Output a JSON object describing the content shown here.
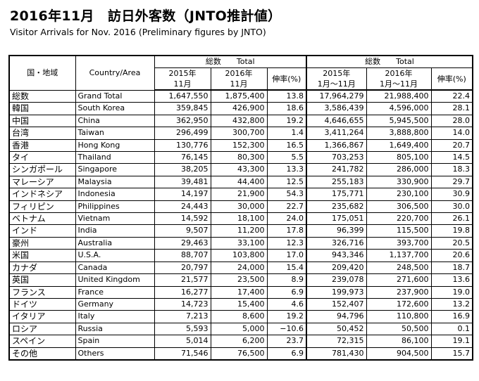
{
  "title": "2016年11月　訪日外客数（JNTO推計値）",
  "subtitle": "Visitor Arrivals for Nov. 2016 (Preliminary figures by JNTO)",
  "header": {
    "region_jp": "国・地域",
    "region_en": "Country/Area",
    "group1": "総数　　Total",
    "group2": "総数　　Total",
    "col_2015_nov": [
      "2015年",
      "11月"
    ],
    "col_2016_nov": [
      "2016年",
      "11月"
    ],
    "col_growth": "伸率(%)",
    "col_2015_ytd": [
      "2015年",
      "1月～11月"
    ],
    "col_2016_ytd": [
      "2016年",
      "1月～11月"
    ],
    "col_growth_ytd": "伸率(%)"
  },
  "rows": [
    {
      "jp": "総数",
      "en": "Grand Total",
      "v2015": "1,647,550",
      "v2016": "1,875,400",
      "g": "13.8",
      "y2015": "17,964,279",
      "y2016": "21,988,400",
      "yg": "22.4"
    },
    {
      "jp": "韓国",
      "en": "South Korea",
      "v2015": "359,845",
      "v2016": "426,900",
      "g": "18.6",
      "y2015": "3,586,439",
      "y2016": "4,596,000",
      "yg": "28.1"
    },
    {
      "jp": "中国",
      "en": "China",
      "v2015": "362,950",
      "v2016": "432,800",
      "g": "19.2",
      "y2015": "4,646,655",
      "y2016": "5,945,500",
      "yg": "28.0"
    },
    {
      "jp": "台湾",
      "en": "Taiwan",
      "v2015": "296,499",
      "v2016": "300,700",
      "g": "1.4",
      "y2015": "3,411,264",
      "y2016": "3,888,800",
      "yg": "14.0"
    },
    {
      "jp": "香港",
      "en": "Hong Kong",
      "v2015": "130,776",
      "v2016": "152,300",
      "g": "16.5",
      "y2015": "1,366,867",
      "y2016": "1,649,400",
      "yg": "20.7"
    },
    {
      "jp": "タイ",
      "en": "Thailand",
      "v2015": "76,145",
      "v2016": "80,300",
      "g": "5.5",
      "y2015": "703,253",
      "y2016": "805,100",
      "yg": "14.5"
    },
    {
      "jp": "シンガポール",
      "en": "Singapore",
      "v2015": "38,205",
      "v2016": "43,300",
      "g": "13.3",
      "y2015": "241,782",
      "y2016": "286,000",
      "yg": "18.3"
    },
    {
      "jp": "マレーシア",
      "en": "Malaysia",
      "v2015": "39,481",
      "v2016": "44,400",
      "g": "12.5",
      "y2015": "255,183",
      "y2016": "330,900",
      "yg": "29.7"
    },
    {
      "jp": "インドネシア",
      "en": "Indonesia",
      "v2015": "14,197",
      "v2016": "21,900",
      "g": "54.3",
      "y2015": "175,771",
      "y2016": "230,100",
      "yg": "30.9"
    },
    {
      "jp": "フィリピン",
      "en": "Philippines",
      "v2015": "24,443",
      "v2016": "30,000",
      "g": "22.7",
      "y2015": "235,682",
      "y2016": "306,500",
      "yg": "30.0"
    },
    {
      "jp": "ベトナム",
      "en": "Vietnam",
      "v2015": "14,592",
      "v2016": "18,100",
      "g": "24.0",
      "y2015": "175,051",
      "y2016": "220,700",
      "yg": "26.1"
    },
    {
      "jp": "インド",
      "en": "India",
      "v2015": "9,507",
      "v2016": "11,200",
      "g": "17.8",
      "y2015": "96,399",
      "y2016": "115,500",
      "yg": "19.8"
    },
    {
      "jp": "豪州",
      "en": "Australia",
      "v2015": "29,463",
      "v2016": "33,100",
      "g": "12.3",
      "y2015": "326,716",
      "y2016": "393,700",
      "yg": "20.5"
    },
    {
      "jp": "米国",
      "en": "U.S.A.",
      "v2015": "88,707",
      "v2016": "103,800",
      "g": "17.0",
      "y2015": "943,346",
      "y2016": "1,137,700",
      "yg": "20.6"
    },
    {
      "jp": "カナダ",
      "en": "Canada",
      "v2015": "20,797",
      "v2016": "24,000",
      "g": "15.4",
      "y2015": "209,420",
      "y2016": "248,500",
      "yg": "18.7"
    },
    {
      "jp": "英国",
      "en": "United Kingdom",
      "v2015": "21,577",
      "v2016": "23,500",
      "g": "8.9",
      "y2015": "239,078",
      "y2016": "271,600",
      "yg": "13.6"
    },
    {
      "jp": "フランス",
      "en": "France",
      "v2015": "16,277",
      "v2016": "17,400",
      "g": "6.9",
      "y2015": "199,973",
      "y2016": "237,900",
      "yg": "19.0"
    },
    {
      "jp": "ドイツ",
      "en": "Germany",
      "v2015": "14,723",
      "v2016": "15,400",
      "g": "4.6",
      "y2015": "152,407",
      "y2016": "172,600",
      "yg": "13.2"
    },
    {
      "jp": "イタリア",
      "en": "Italy",
      "v2015": "7,213",
      "v2016": "8,600",
      "g": "19.2",
      "y2015": "94,796",
      "y2016": "110,800",
      "yg": "16.9"
    },
    {
      "jp": "ロシア",
      "en": "Russia",
      "v2015": "5,593",
      "v2016": "5,000",
      "g": "−10.6",
      "y2015": "50,452",
      "y2016": "50,500",
      "yg": "0.1"
    },
    {
      "jp": "スペイン",
      "en": "Spain",
      "v2015": "5,014",
      "v2016": "6,200",
      "g": "23.7",
      "y2015": "72,315",
      "y2016": "86,100",
      "yg": "19.1"
    },
    {
      "jp": "その他",
      "en": "Others",
      "v2015": "71,546",
      "v2016": "76,500",
      "g": "6.9",
      "y2015": "781,430",
      "y2016": "904,500",
      "yg": "15.7"
    }
  ]
}
